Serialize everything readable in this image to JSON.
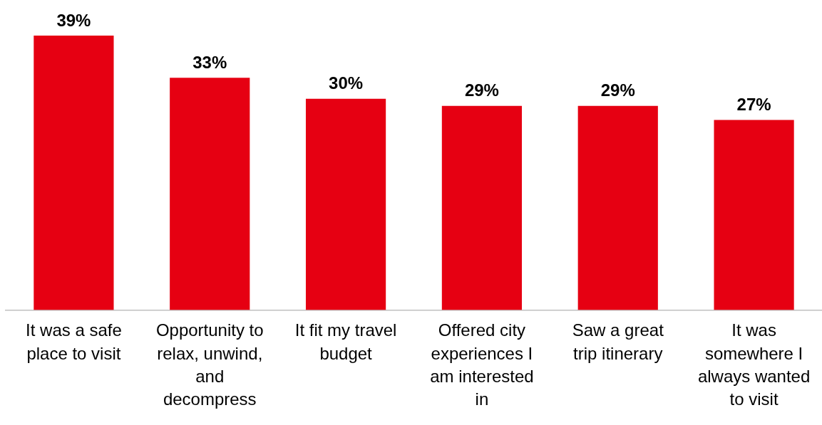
{
  "chart_data": {
    "type": "bar",
    "categories": [
      "It was a safe place to visit",
      "Opportunity to relax, unwind, and decompress",
      "It fit my travel budget",
      "Offered city experiences I am interested in",
      "Saw a great trip itinerary",
      "It was somewhere I always wanted to visit"
    ],
    "values": [
      39,
      33,
      30,
      29,
      29,
      27
    ],
    "value_labels": [
      "39%",
      "33%",
      "30%",
      "29%",
      "29%",
      "27%"
    ],
    "color": "#e60012",
    "grid": false,
    "legend": false,
    "relative": false
  }
}
